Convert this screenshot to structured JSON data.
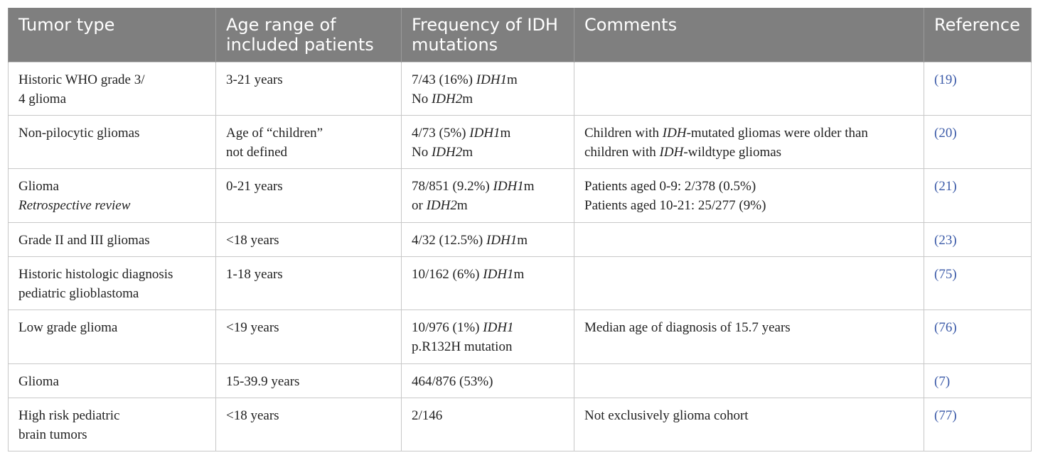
{
  "header": {
    "col1": "Tumor type",
    "col2": "Age range of included patients",
    "col3": "Frequency of IDH mutations",
    "col4": "Comments",
    "col5": "Reference"
  },
  "rows": [
    {
      "tumor": [
        "Historic WHO grade 3/",
        "4 glioma"
      ],
      "age": [
        "3-21 years"
      ],
      "freq": [
        {
          "pre": "7/43 (16%) ",
          "it": "IDH1",
          "post": "m"
        },
        {
          "pre": "No ",
          "it": "IDH2",
          "post": "m"
        }
      ],
      "comments": [],
      "ref": "19"
    },
    {
      "tumor": [
        "Non-pilocytic gliomas"
      ],
      "age": [
        "Age of “children”",
        "not defined"
      ],
      "freq": [
        {
          "pre": "4/73 (5%) ",
          "it": "IDH1",
          "post": "m"
        },
        {
          "pre": "No ",
          "it": "IDH2",
          "post": "m"
        }
      ],
      "comments": [
        {
          "pre": "Children with ",
          "it": "IDH",
          "post": "-mutated gliomas were older than"
        },
        {
          "pre": "children with ",
          "it": "IDH",
          "post": "-wildtype gliomas"
        }
      ],
      "ref": "20"
    },
    {
      "tumor": [
        "Glioma"
      ],
      "tumor_italic": "Retrospective review",
      "age": [
        "0-21 years"
      ],
      "freq": [
        {
          "pre": "78/851 (9.2%) ",
          "it": "IDH1",
          "post": "m"
        },
        {
          "pre": "or ",
          "it": "IDH2",
          "post": "m"
        }
      ],
      "comments": [
        {
          "pre": "Patients aged 0-9: 2/378 (0.5%)",
          "it": "",
          "post": ""
        },
        {
          "pre": "Patients aged 10-21: 25/277 (9%)",
          "it": "",
          "post": ""
        }
      ],
      "ref": "21"
    },
    {
      "tumor": [
        "Grade II and III gliomas"
      ],
      "age": [
        "<18 years"
      ],
      "freq": [
        {
          "pre": "4/32 (12.5%) ",
          "it": "IDH1",
          "post": "m"
        }
      ],
      "comments": [],
      "ref": "23"
    },
    {
      "tumor": [
        "Historic histologic diagnosis",
        "pediatric glioblastoma"
      ],
      "age": [
        "1-18 years"
      ],
      "freq": [
        {
          "pre": "10/162 (6%) ",
          "it": "IDH1",
          "post": "m"
        }
      ],
      "comments": [],
      "ref": "75"
    },
    {
      "tumor": [
        "Low grade glioma"
      ],
      "age": [
        "<19 years"
      ],
      "freq": [
        {
          "pre": "10/976 (1%) ",
          "it": "IDH1",
          "post": ""
        },
        {
          "pre": "p.R132H mutation",
          "it": "",
          "post": ""
        }
      ],
      "comments": [
        {
          "pre": "Median age of diagnosis of 15.7 years",
          "it": "",
          "post": ""
        }
      ],
      "ref": "76"
    },
    {
      "tumor": [
        "Glioma"
      ],
      "age": [
        "15-39.9 years"
      ],
      "freq": [
        {
          "pre": "464/876 (53%)",
          "it": "",
          "post": ""
        }
      ],
      "comments": [],
      "ref": "7"
    },
    {
      "tumor": [
        "High risk pediatric",
        "brain tumors"
      ],
      "age": [
        "<18 years"
      ],
      "freq": [
        {
          "pre": "2/146",
          "it": "",
          "post": ""
        }
      ],
      "comments": [
        {
          "pre": "Not exclusively glioma cohort",
          "it": "",
          "post": ""
        }
      ],
      "ref": "77"
    }
  ]
}
